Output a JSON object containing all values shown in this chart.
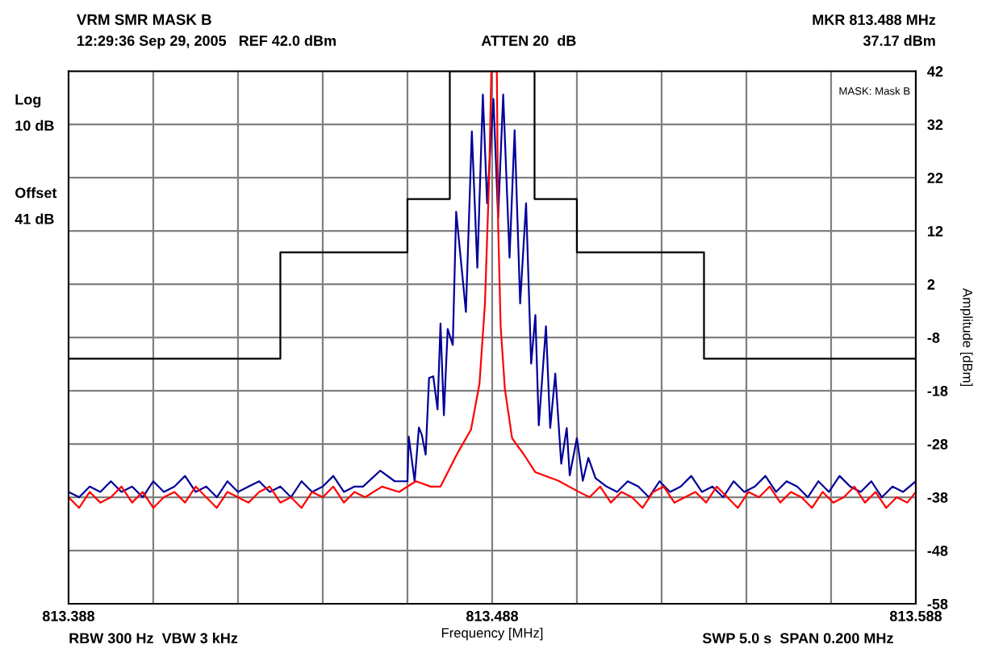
{
  "chart_data": {
    "type": "line",
    "title": "VRM SMR MASK B",
    "xlabel": "Frequency [MHz]",
    "ylabel": "Amplitude [dBm]",
    "annotations": [
      "12:29:36 Sep 29, 2005   REF 42.0 dBm",
      "ATTEN 20  dB",
      "MKR 813.488 MHz",
      "37.17 dBm",
      "Log",
      "10 dB",
      "Offset",
      "41 dB",
      "MASK: Mask B",
      "RBW 300 Hz  VBW 3 kHz",
      "SWP 5.0 s  SPAN 0.200 MHz"
    ],
    "xlim": [
      813.388,
      813.588
    ],
    "ylim": [
      -58,
      42
    ],
    "xticks": [
      813.388,
      {
        "value": 813.408,
        "label": null
      },
      {
        "value": 813.428,
        "label": null
      },
      {
        "value": 813.448,
        "label": null
      },
      {
        "value": 813.468,
        "label": null
      },
      813.488,
      {
        "value": 813.508,
        "label": null
      },
      {
        "value": 813.528,
        "label": null
      },
      {
        "value": 813.548,
        "label": null
      },
      {
        "value": 813.568,
        "label": null
      },
      813.588
    ],
    "yticks": [
      42,
      32,
      22,
      12,
      2,
      -8,
      -18,
      -28,
      -38,
      -48,
      -58
    ],
    "grid": true,
    "legend": false,
    "marker": "none",
    "line_style": "solid",
    "series": [
      {
        "color": "#000000",
        "x": [
          813.388,
          813.438,
          813.438,
          813.468,
          813.468,
          813.478,
          813.478,
          813.498,
          813.498,
          813.508,
          813.508,
          813.538,
          813.538,
          813.588
        ],
        "values": [
          -12,
          -12,
          8,
          8,
          18,
          18,
          42,
          42,
          18,
          18,
          8,
          8,
          -12,
          -12
        ]
      },
      {
        "color": "#000099",
        "x": [
          813.388,
          813.3905,
          813.393,
          813.3955,
          813.398,
          813.4005,
          813.403,
          813.4055,
          813.408,
          813.4105,
          813.413,
          813.4155,
          813.418,
          813.4205,
          813.423,
          813.4255,
          813.428,
          813.4305,
          813.433,
          813.4355,
          813.438,
          813.4405,
          813.443,
          813.4455,
          813.448,
          813.4505,
          813.453,
          813.4555,
          813.4575,
          813.4616,
          813.465,
          813.468,
          813.4683,
          813.4697,
          813.4707,
          813.4714,
          813.4723,
          813.4731,
          813.4741,
          813.4751,
          813.4758,
          813.4766,
          813.4775,
          813.4787,
          813.4795,
          813.4818,
          813.4832,
          813.4845,
          813.4858,
          813.4868,
          813.4883,
          813.4894,
          813.4906,
          813.4921,
          813.4933,
          813.4946,
          813.496,
          813.4972,
          813.4982,
          813.499,
          813.5007,
          813.5017,
          813.5029,
          813.5043,
          813.5056,
          813.5063,
          813.508,
          813.5094,
          813.5107,
          813.5124,
          813.515,
          813.5175,
          813.52,
          813.5225,
          813.525,
          813.5275,
          813.53,
          813.5325,
          813.535,
          813.5375,
          813.54,
          813.5425,
          813.545,
          813.5475,
          813.55,
          813.5525,
          813.555,
          813.5575,
          813.56,
          813.5625,
          813.565,
          813.5675,
          813.57,
          813.5725,
          813.575,
          813.5775,
          813.58,
          813.5825,
          813.585,
          813.588
        ],
        "values": [
          -37,
          -38,
          -36,
          -37,
          -35,
          -37,
          -36,
          -38,
          -35,
          -37,
          -36,
          -34,
          -37,
          -36,
          -38,
          -35,
          -37,
          -36,
          -35,
          -37,
          -36,
          -38,
          -35,
          -37,
          -36,
          -34,
          -37,
          -36,
          -36,
          -33,
          -35,
          -35,
          -26.6,
          -35,
          -24.9,
          -26.3,
          -30,
          -15.6,
          -15.3,
          -21.5,
          -5.4,
          -22.6,
          -6.4,
          -9.4,
          15.6,
          -3.2,
          30.7,
          5.1,
          37.6,
          17.2,
          36.8,
          14.5,
          37.6,
          7,
          30.9,
          -1.6,
          17.2,
          -12.9,
          -3.8,
          -24.5,
          -5.9,
          -25,
          -14.8,
          -31.7,
          -25,
          -33.9,
          -26.9,
          -34.9,
          -30.6,
          -34.4,
          -36,
          -37,
          -35,
          -36,
          -38,
          -35,
          -37,
          -36,
          -34,
          -37,
          -36,
          -38,
          -35,
          -37,
          -36,
          -34,
          -37,
          -35,
          -36,
          -38,
          -35,
          -37,
          -34,
          -36,
          -37,
          -35,
          -38,
          -36,
          -37,
          -35
        ]
      },
      {
        "color": "#ff0000",
        "x": [
          813.388,
          813.3905,
          813.393,
          813.3955,
          813.398,
          813.4005,
          813.403,
          813.4055,
          813.408,
          813.4105,
          813.413,
          813.4155,
          813.418,
          813.4205,
          813.423,
          813.4255,
          813.428,
          813.4305,
          813.433,
          813.4355,
          813.438,
          813.4405,
          813.443,
          813.4455,
          813.448,
          813.4505,
          813.453,
          813.4555,
          813.458,
          813.462,
          813.466,
          813.47,
          813.4735,
          813.4758,
          813.4799,
          813.483,
          813.485,
          813.4863,
          813.4873,
          813.4878,
          813.4891,
          813.4894,
          813.49,
          813.491,
          813.4927,
          813.4955,
          813.4982,
          813.5036,
          813.508,
          813.511,
          813.5135,
          813.516,
          813.5185,
          813.521,
          813.5235,
          813.526,
          813.5285,
          813.531,
          813.5335,
          813.536,
          813.5385,
          813.541,
          813.5435,
          813.546,
          813.5485,
          813.551,
          813.5535,
          813.556,
          813.5585,
          813.561,
          813.5635,
          813.566,
          813.5685,
          813.571,
          813.5735,
          813.576,
          813.5785,
          813.581,
          813.5835,
          813.586,
          813.588
        ],
        "values": [
          -38,
          -40,
          -37,
          -39,
          -38,
          -36,
          -39,
          -37,
          -40,
          -38,
          -37,
          -39,
          -36,
          -38,
          -40,
          -37,
          -38,
          -39,
          -37,
          -36,
          -39,
          -38,
          -40,
          -37,
          -38,
          -36,
          -39,
          -37,
          -38,
          -36,
          -37,
          -35,
          -36,
          -36,
          -29.6,
          -25.3,
          -16.7,
          -1.6,
          22.6,
          42,
          42,
          13.5,
          -5.9,
          -17.7,
          -26.9,
          -30,
          -33.3,
          -34.9,
          -36.8,
          -38,
          -36,
          -39,
          -37,
          -38,
          -40,
          -37,
          -36,
          -39,
          -38,
          -37,
          -39,
          -36,
          -38,
          -40,
          -37,
          -38,
          -36,
          -39,
          -37,
          -38,
          -40,
          -37,
          -39,
          -38,
          -36,
          -39,
          -37,
          -40,
          -38,
          -39,
          -37
        ]
      }
    ]
  }
}
